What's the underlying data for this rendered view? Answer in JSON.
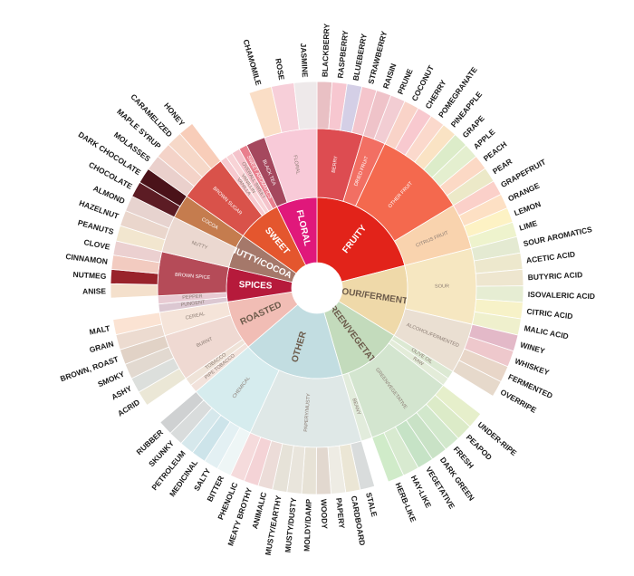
{
  "chart_data": {
    "type": "sunburst",
    "nodes": [
      {
        "name": "FRUITY",
        "color": "#e2231a",
        "children": [
          {
            "name": "BERRY",
            "color": "#dd4c51",
            "children": [
              {
                "name": "BLACKBERRY",
                "color": "#e9c0c4",
                "value": 4.2
              },
              {
                "name": "RASPBERRY",
                "color": "#f7c7d0",
                "value": 4.2
              },
              {
                "name": "BLUEBERRY",
                "color": "#d4cfe6",
                "value": 4.2
              },
              {
                "name": "STRAWBERRY",
                "color": "#f4c5cc",
                "value": 4.2
              }
            ]
          },
          {
            "name": "DRIED FRUIT",
            "color": "#f26f63",
            "children": [
              {
                "name": "RAISIN",
                "color": "#efc3c9",
                "value": 4.2
              },
              {
                "name": "PRUNE",
                "color": "#f2cdd3",
                "value": 4.2
              }
            ]
          },
          {
            "name": "OTHER FRUIT",
            "color": "#f4694e",
            "children": [
              {
                "name": "COCONUT",
                "color": "#f9d3c8",
                "value": 4.2
              },
              {
                "name": "CHERRY",
                "color": "#f8c9cf",
                "value": 4.2
              },
              {
                "name": "POMEGRANATE",
                "color": "#fbd9cc",
                "value": 4.2
              },
              {
                "name": "PINEAPPLE",
                "color": "#fae3c4",
                "value": 4.2
              },
              {
                "name": "GRAPE",
                "color": "#dcecc9",
                "value": 4.2
              },
              {
                "name": "APPLE",
                "color": "#e4efcf",
                "value": 4.2
              },
              {
                "name": "PEACH",
                "color": "#fcd9c5",
                "value": 4.2
              },
              {
                "name": "PEAR",
                "color": "#ece9c8",
                "value": 4.2
              }
            ]
          },
          {
            "name": "CITRUS FRUIT",
            "color": "#f9d3ae",
            "children": [
              {
                "name": "GRAPEFRUIT",
                "color": "#fbd0c9",
                "value": 4.2
              },
              {
                "name": "ORANGE",
                "color": "#fde0c4",
                "value": 4.2
              },
              {
                "name": "LEMON",
                "color": "#fdf2c4",
                "value": 4.2
              },
              {
                "name": "LIME",
                "color": "#eef3cd",
                "value": 4.2
              }
            ]
          }
        ]
      },
      {
        "name": "SOUR/FERMENTED",
        "color": "#efd9a9",
        "children": [
          {
            "name": "SOUR",
            "color": "#f6e7c1",
            "children": [
              {
                "name": "SOUR AROMATICS",
                "color": "#e4ead2",
                "value": 4.6
              },
              {
                "name": "ACETIC ACID",
                "color": "#ede8cd",
                "value": 4.6
              },
              {
                "name": "BUTYRIC ACID",
                "color": "#eee6cf",
                "value": 4.6
              },
              {
                "name": "ISOVALERIC ACID",
                "color": "#e6edd3",
                "value": 4.6
              },
              {
                "name": "CITRIC ACID",
                "color": "#f7f2c8",
                "value": 4.6
              },
              {
                "name": "MALIC ACID",
                "color": "#eff0cd",
                "value": 4.6
              }
            ]
          },
          {
            "name": "ALCOHOL/FERMENTED",
            "color": "#eadfd2",
            "children": [
              {
                "name": "WINEY",
                "color": "#e3b9c8",
                "value": 4.6
              },
              {
                "name": "WHISKEY",
                "color": "#eec8cc",
                "value": 4.6
              },
              {
                "name": "FERMENTED",
                "color": "#e8d6c8",
                "value": 4.6
              },
              {
                "name": "OVERRIPE",
                "color": "#e6d9cb",
                "value": 4.6
              }
            ]
          }
        ]
      },
      {
        "name": "GREEN/VEGETATIVE",
        "color": "#c3dbbc",
        "children": [
          {
            "name": "OLIVE OIL",
            "color": "#dce9d3",
            "value": 3
          },
          {
            "name": "RAW",
            "color": "#e3ecd9",
            "value": 3
          },
          {
            "name": "GREEN/VEGETATIVE",
            "color": "#d3e5cf",
            "children": [
              {
                "name": "UNDER-RIPE",
                "color": "#e6efcb",
                "value": 4.6
              },
              {
                "name": "PEAPOD",
                "color": "#dcebc8",
                "value": 4.6
              },
              {
                "name": "FRESH",
                "color": "#d2e8cc",
                "value": 4.6
              },
              {
                "name": "DARK GREEN",
                "color": "#c9e2c6",
                "value": 4.6
              },
              {
                "name": "VEGETATIVE",
                "color": "#c6e3c6",
                "value": 4.6
              },
              {
                "name": "HAY-LIKE",
                "color": "#d8ead0",
                "value": 4.6
              },
              {
                "name": "HERB-LIKE",
                "color": "#d0ebc9",
                "value": 4.6
              }
            ]
          },
          {
            "name": "BEANY",
            "color": "#e2ecdc",
            "value": 4
          }
        ]
      },
      {
        "name": "OTHER",
        "color": "#c2dde1",
        "children": [
          {
            "name": "PAPERY/MUSTY",
            "color": "#dfe8e7",
            "children": [
              {
                "name": "STALE",
                "color": "#d9dcdc",
                "value": 4.1
              },
              {
                "name": "CARDBOARD",
                "color": "#ebe6d5",
                "value": 4.1
              },
              {
                "name": "PAPERY",
                "color": "#eeece4",
                "value": 4.1
              },
              {
                "name": "WOODY",
                "color": "#e2d8cf",
                "value": 4.1
              },
              {
                "name": "MOLDY/DAMP",
                "color": "#e7e2d6",
                "value": 4.1
              },
              {
                "name": "MUSTY/DUSTY",
                "color": "#e9e5dc",
                "value": 4.1
              },
              {
                "name": "MUSTY/EARTHY",
                "color": "#e6e2d8",
                "value": 4.1
              },
              {
                "name": "ANIMALIC",
                "color": "#ecdcd8",
                "value": 4.1
              },
              {
                "name": "MEATY BROTHY",
                "color": "#f4d3d6",
                "value": 4.1
              },
              {
                "name": "PHENOLIC",
                "color": "#f5dbdc",
                "value": 4.1
              }
            ]
          },
          {
            "name": "CHEMICAL",
            "color": "#d6ecee",
            "children": [
              {
                "name": "BITTER",
                "color": "#eef6f6",
                "value": 4.1
              },
              {
                "name": "SALTY",
                "color": "#e3f0f3",
                "value": 4.1
              },
              {
                "name": "MEDICINAL",
                "color": "#cde4ea",
                "value": 4.1
              },
              {
                "name": "PETROLEUM",
                "color": "#d6e8ec",
                "value": 4.1
              },
              {
                "name": "SKUNKY",
                "color": "#d9dcdc",
                "value": 4.1
              },
              {
                "name": "RUBBER",
                "color": "#cfd1d2",
                "value": 4.1
              }
            ]
          }
        ]
      },
      {
        "name": "ROASTED",
        "color": "#f1bdb5",
        "children": [
          {
            "name": "PIPE TOBACCO",
            "color": "#f2e2db",
            "value": 3
          },
          {
            "name": "TOBACCO",
            "color": "#efe3d8",
            "value": 3
          },
          {
            "name": "BURNT",
            "color": "#efd9d2",
            "children": [
              {
                "name": "ACRID",
                "color": "#ebe7d6",
                "value": 4.3
              },
              {
                "name": "ASHY",
                "color": "#dcdfdc",
                "value": 4.3
              },
              {
                "name": "SMOKY",
                "color": "#e2d9d0",
                "value": 4.3
              },
              {
                "name": "BROWN, ROAST",
                "color": "#e1d2c6",
                "value": 4.3
              }
            ]
          },
          {
            "name": "CEREAL",
            "color": "#f5e4d9",
            "children": [
              {
                "name": "GRAIN",
                "color": "#ecdbd0",
                "value": 4.3
              },
              {
                "name": "MALT",
                "color": "#fbe3d3",
                "value": 4.3
              }
            ]
          }
        ]
      },
      {
        "name": "SPICES",
        "color": "#b61a3b",
        "children": [
          {
            "name": "PUNGENT",
            "color": "#dcc8d2",
            "value": 3
          },
          {
            "name": "PEPPER",
            "color": "#e8cbd3",
            "value": 3
          },
          {
            "name": "BROWN SPICE",
            "color": "#b54b58",
            "children": [
              {
                "name": "ANISE",
                "color": "#f4e0cc",
                "value": 4
              },
              {
                "name": "NUTMEG",
                "color": "#99232b",
                "value": 4
              },
              {
                "name": "CINNAMON",
                "color": "#f2cbc0",
                "value": 4
              },
              {
                "name": "CLOVE",
                "color": "#ebd0d0",
                "value": 4
              }
            ]
          }
        ]
      },
      {
        "name": "NUTTY/COCOA",
        "color": "#a5786a",
        "children": [
          {
            "name": "NUTTY",
            "color": "#ebd8d0",
            "children": [
              {
                "name": "PEANUTS",
                "color": "#f2e6cf",
                "value": 4.4
              },
              {
                "name": "HAZELNUT",
                "color": "#ead6cc",
                "value": 4.4
              },
              {
                "name": "ALMOND",
                "color": "#e7d3cf",
                "value": 4.4
              }
            ]
          },
          {
            "name": "COCOA",
            "color": "#c57c4e",
            "children": [
              {
                "name": "CHOCOLATE",
                "color": "#5c1c24",
                "value": 4.4
              },
              {
                "name": "DARK CHOCOLATE",
                "color": "#4a1219",
                "value": 4.4
              }
            ]
          }
        ]
      },
      {
        "name": "SWEET",
        "color": "#e4562e",
        "children": [
          {
            "name": "BROWN SUGAR",
            "color": "#d9524a",
            "children": [
              {
                "name": "MOLASSES",
                "color": "#ead0cc",
                "value": 4.4
              },
              {
                "name": "MAPLE SYRUP",
                "color": "#f4d3c8",
                "value": 4.4
              },
              {
                "name": "CARAMELIZED",
                "color": "#f6d8c8",
                "value": 4.4
              },
              {
                "name": "HONEY",
                "color": "#f8cdb9",
                "value": 4.4
              }
            ]
          },
          {
            "name": "VANILLA",
            "color": "#f6c9cf",
            "value": 2.5
          },
          {
            "name": "VANILLIN",
            "color": "#f8d3d6",
            "value": 2.5
          },
          {
            "name": "OVERALL SWEET",
            "color": "#f4c3cb",
            "value": 3
          },
          {
            "name": "SWEET AROMATICS",
            "color": "#e97f8d",
            "value": 3
          }
        ]
      },
      {
        "name": "FLORAL",
        "color": "#e0187b",
        "children": [
          {
            "name": "BLACK TEA",
            "color": "#a5485e",
            "value": 7
          },
          {
            "name": "FLORAL",
            "color": "#f8cad8",
            "children": [
              {
                "name": "CHAMOMILE",
                "color": "#fadec6",
                "value": 6.4
              },
              {
                "name": "ROSE",
                "color": "#f7cfd9",
                "value": 6.4
              },
              {
                "name": "JASMINE",
                "color": "#eee9ea",
                "value": 6.4
              }
            ]
          }
        ]
      }
    ]
  }
}
